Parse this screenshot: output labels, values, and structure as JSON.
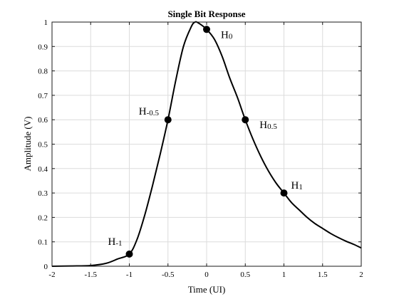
{
  "chart_data": {
    "type": "line",
    "title": "Single Bit Response",
    "xlabel": "Time (UI)",
    "ylabel": "Amplitude (V)",
    "xlim": [
      -2,
      2
    ],
    "ylim": [
      0,
      1
    ],
    "xticks": [
      -2,
      -1.5,
      -1,
      -0.5,
      0,
      0.5,
      1,
      1.5,
      2
    ],
    "xtick_labels": [
      "-2",
      "-1.5",
      "-1",
      "-0.5",
      "0",
      "0.5",
      "1",
      "1.5",
      "2"
    ],
    "yticks": [
      0,
      0.1,
      0.2,
      0.3,
      0.4,
      0.5,
      0.6,
      0.7,
      0.8,
      0.9,
      1
    ],
    "ytick_labels": [
      "0",
      "0.1",
      "0.2",
      "0.3",
      "0.4",
      "0.5",
      "0.6",
      "0.7",
      "0.8",
      "0.9",
      "1"
    ],
    "grid": true,
    "legend": null,
    "series": [
      {
        "color": "#000000",
        "x": [
          -2.0,
          -1.75,
          -1.5,
          -1.3,
          -1.15,
          -1.0,
          -0.9,
          -0.8,
          -0.7,
          -0.6,
          -0.5,
          -0.4,
          -0.3,
          -0.2,
          -0.15,
          -0.1,
          0.0,
          0.1,
          0.2,
          0.3,
          0.4,
          0.5,
          0.6,
          0.7,
          0.8,
          0.9,
          1.0,
          1.1,
          1.2,
          1.3,
          1.4,
          1.5,
          1.6,
          1.7,
          1.8,
          1.9,
          2.0
        ],
        "y": [
          0.0,
          0.001,
          0.003,
          0.012,
          0.03,
          0.05,
          0.11,
          0.21,
          0.33,
          0.46,
          0.6,
          0.76,
          0.9,
          0.98,
          1.0,
          0.995,
          0.97,
          0.93,
          0.86,
          0.77,
          0.69,
          0.6,
          0.52,
          0.45,
          0.39,
          0.34,
          0.3,
          0.26,
          0.23,
          0.2,
          0.175,
          0.155,
          0.135,
          0.118,
          0.103,
          0.09,
          0.075
        ]
      }
    ],
    "markers": [
      {
        "x": -1,
        "y": 0.05,
        "main": "H",
        "sub": "-1",
        "anchor": "above-left"
      },
      {
        "x": -0.5,
        "y": 0.6,
        "main": "H",
        "sub": "-0.5",
        "anchor": "left"
      },
      {
        "x": 0,
        "y": 0.97,
        "main": "H",
        "sub": "0",
        "anchor": "right"
      },
      {
        "x": 0.5,
        "y": 0.6,
        "main": "H",
        "sub": "0.5",
        "anchor": "right"
      },
      {
        "x": 1,
        "y": 0.3,
        "main": "H",
        "sub": "1",
        "anchor": "above-right"
      }
    ]
  }
}
